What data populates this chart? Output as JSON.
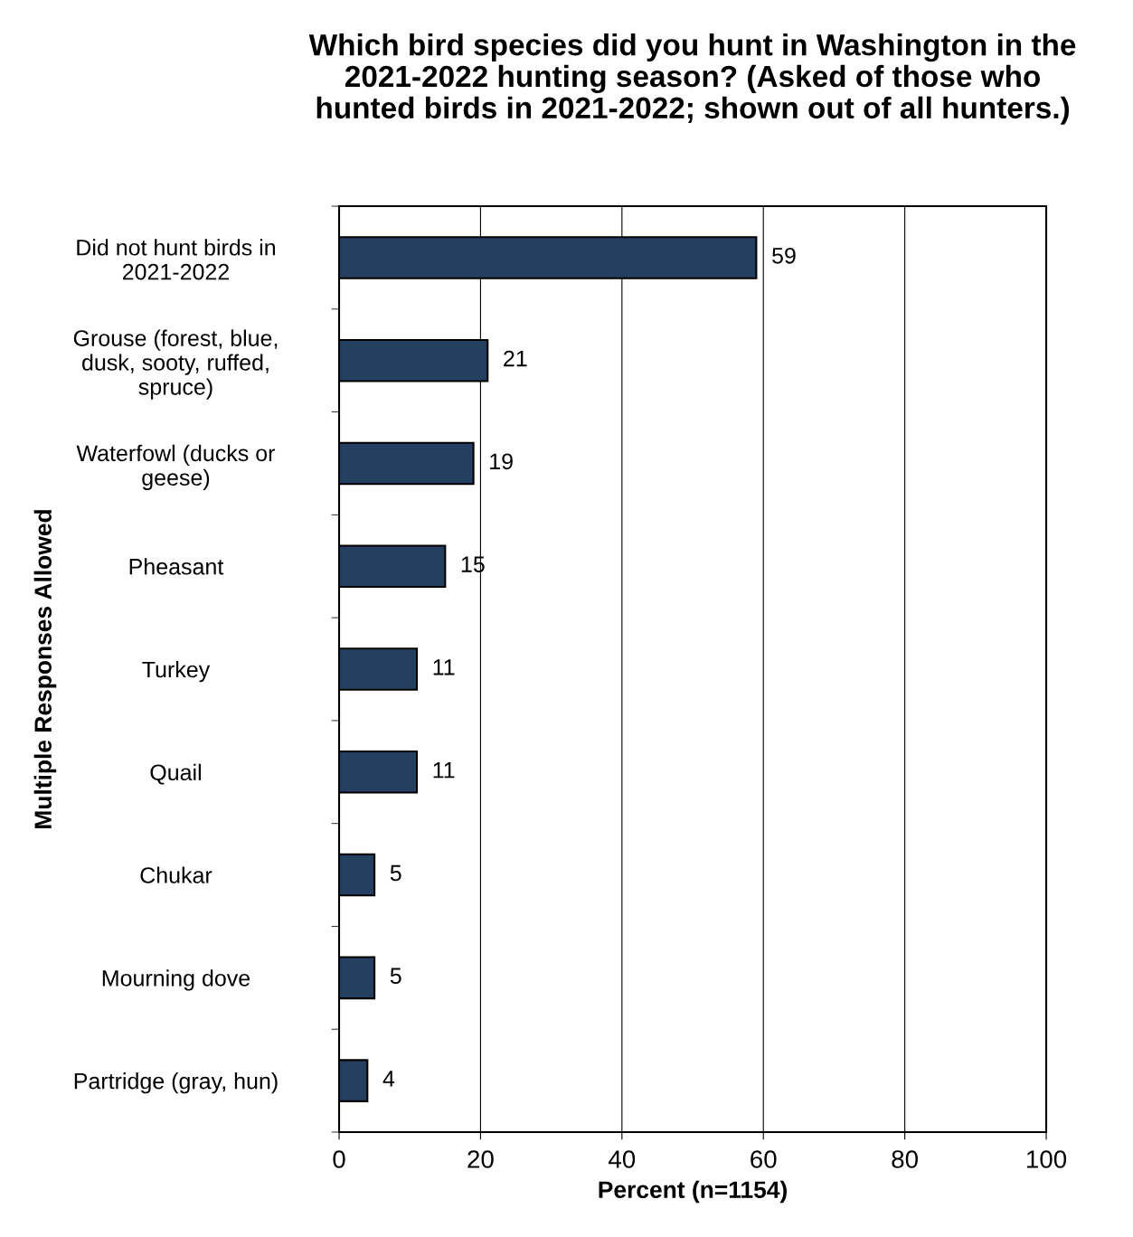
{
  "chart_data": {
    "type": "bar",
    "orientation": "horizontal",
    "title": "Which bird species did you hunt in Washington in the\n2021-2022 hunting season? (Asked of those who\nhunted birds in 2021-2022; shown out of all hunters.)",
    "xlabel": "Percent (n=1154)",
    "ylabel": "Multiple Responses Allowed",
    "categories": [
      "Did not hunt birds in\n2021-2022",
      "Grouse (forest, blue,\ndusk, sooty, ruffed,\nspruce)",
      "Waterfowl (ducks or\ngeese)",
      "Pheasant",
      "Turkey",
      "Quail",
      "Chukar",
      "Mourning dove",
      "Partridge (gray, hun)"
    ],
    "values": [
      59,
      21,
      19,
      15,
      11,
      11,
      5,
      5,
      4
    ],
    "color": "#243f60",
    "data_labels": true,
    "xlim": [
      0,
      100
    ],
    "xticks": [
      0,
      20,
      40,
      60,
      80,
      100
    ],
    "grid": "x",
    "legend": false
  }
}
